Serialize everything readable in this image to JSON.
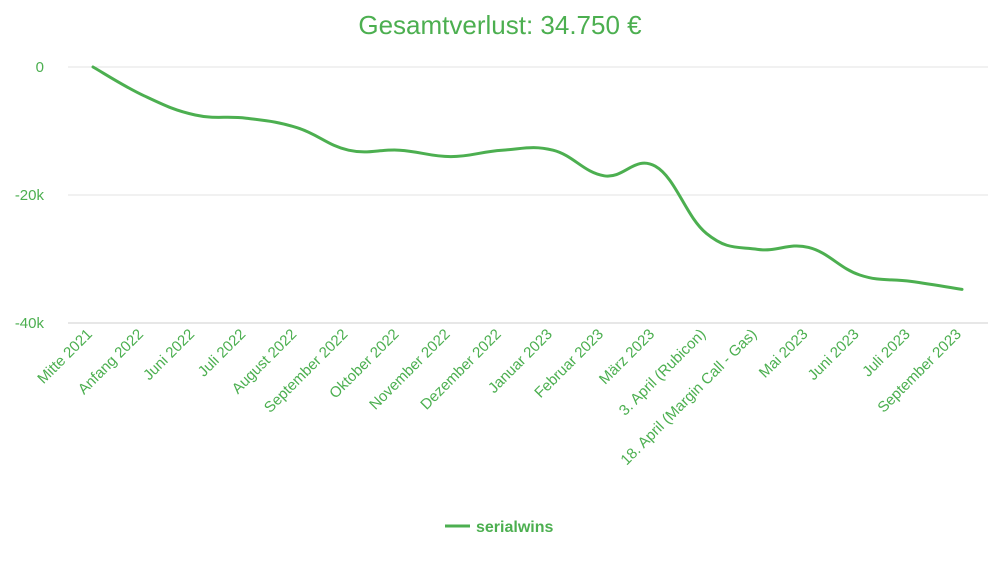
{
  "chart_data": {
    "type": "line",
    "title": "Gesamtverlust: 34.750 €",
    "categories": [
      "Mitte 2021",
      "Anfang 2022",
      "Juni 2022",
      "Juli 2022",
      "August 2022",
      "September 2022",
      "Oktober 2022",
      "November 2022",
      "Dezember 2022",
      "Januar 2023",
      "Februar 2023",
      "März 2023",
      "3. April (Rubicon)",
      "18. April (Margin Call - Gas)",
      "Mai 2023",
      "Juni 2023",
      "Juli 2023",
      "September 2023"
    ],
    "series": [
      {
        "name": "serialwins",
        "values": [
          0,
          -4500,
          -7500,
          -8000,
          -9500,
          -13000,
          -13000,
          -14000,
          -13000,
          -13000,
          -17000,
          -15500,
          -26000,
          -28500,
          -28200,
          -32500,
          -33500,
          -34750
        ],
        "color": "#4caf50"
      }
    ],
    "y_ticks": [
      {
        "value": 0,
        "label": "0"
      },
      {
        "value": -20000,
        "label": "-20k"
      },
      {
        "value": -40000,
        "label": "-40k"
      }
    ],
    "ylim": [
      -40000,
      0
    ],
    "grid": true,
    "legend_position": "bottom",
    "smooth": true
  }
}
